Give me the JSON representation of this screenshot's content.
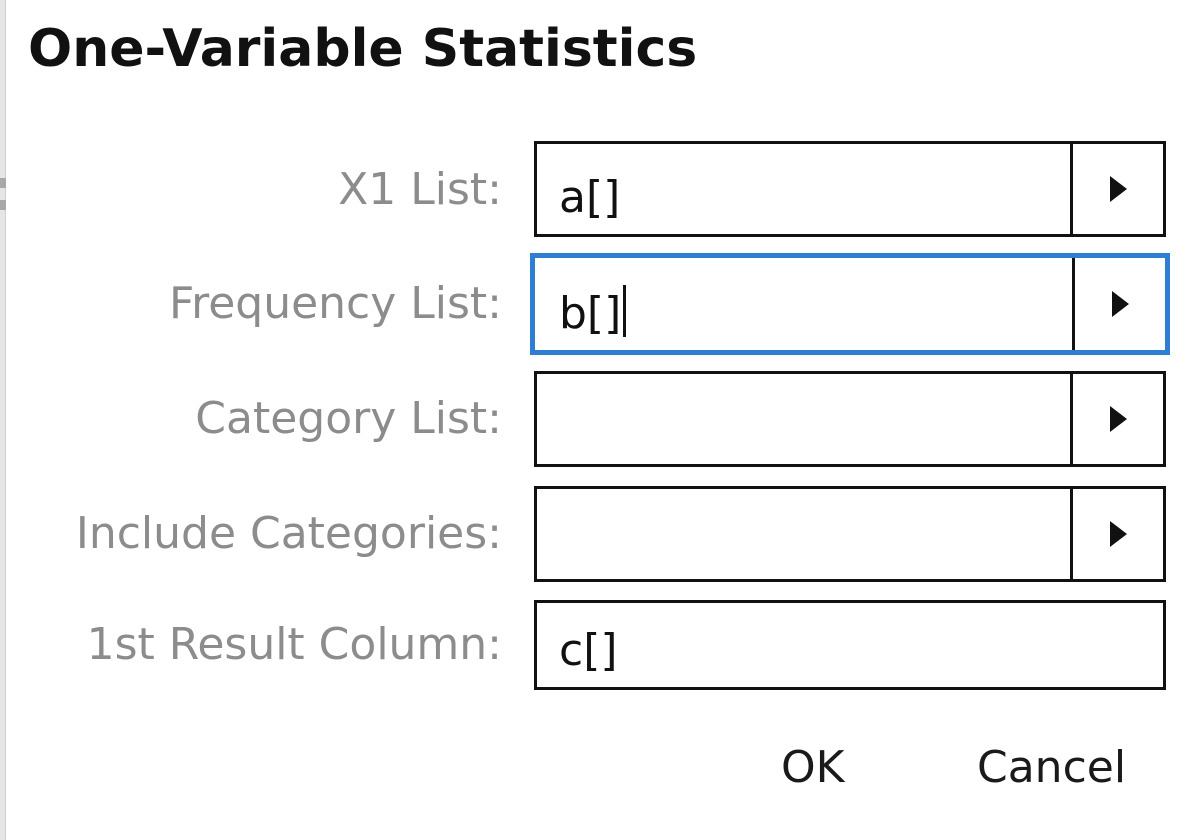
{
  "dialog": {
    "title": "One-Variable Statistics"
  },
  "fields": [
    {
      "label": "X1 List:",
      "value": "a[]",
      "has_dropdown": true,
      "focused": false
    },
    {
      "label": "Frequency List:",
      "value": "b[]",
      "has_dropdown": true,
      "focused": true
    },
    {
      "label": "Category List:",
      "value": "",
      "has_dropdown": true,
      "focused": false
    },
    {
      "label": "Include Categories:",
      "value": "",
      "has_dropdown": true,
      "focused": false
    },
    {
      "label": "1st Result Column:",
      "value": "c[]",
      "has_dropdown": false,
      "focused": false
    }
  ],
  "buttons": {
    "ok_label": "OK",
    "cancel_label": "Cancel"
  },
  "colors": {
    "focus_border": "#2d7fd1",
    "label_text": "#8c8c8c",
    "field_border": "#111111"
  },
  "icons": {
    "dropdown": "triangle-right-icon"
  }
}
